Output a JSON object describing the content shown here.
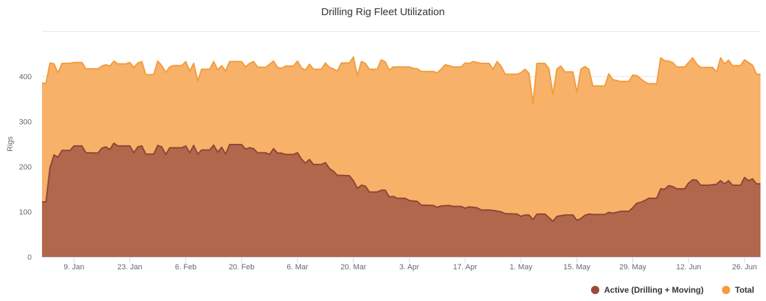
{
  "chart_data": {
    "type": "area",
    "title": "Drilling Rig Fleet Utilization",
    "ylabel": "Rigs",
    "xlabel": "",
    "ylim": [
      0,
      500
    ],
    "yticks": [
      0,
      100,
      200,
      300,
      400
    ],
    "grid": true,
    "legend_placement": "bottom-right",
    "xlim": [
      "01-01",
      "06-30"
    ],
    "xticks": [
      {
        "date": "01-09",
        "label": "9. Jan"
      },
      {
        "date": "01-23",
        "label": "23. Jan"
      },
      {
        "date": "02-06",
        "label": "6. Feb"
      },
      {
        "date": "02-20",
        "label": "20. Feb"
      },
      {
        "date": "03-06",
        "label": "6. Mar"
      },
      {
        "date": "03-20",
        "label": "20. Mar"
      },
      {
        "date": "04-03",
        "label": "3. Apr"
      },
      {
        "date": "04-17",
        "label": "17. Apr"
      },
      {
        "date": "05-01",
        "label": "1. May"
      },
      {
        "date": "05-15",
        "label": "15. May"
      },
      {
        "date": "05-29",
        "label": "29. May"
      },
      {
        "date": "06-12",
        "label": "12. Jun"
      },
      {
        "date": "06-26",
        "label": "26. Jun"
      }
    ],
    "series": [
      {
        "name": "Total",
        "fill": "#f7b169",
        "line": "#f39c3c",
        "legend_color": "#f39c3c",
        "points": [
          [
            "01-01",
            385
          ],
          [
            "01-02",
            385
          ],
          [
            "01-03",
            430
          ],
          [
            "01-04",
            428
          ],
          [
            "01-05",
            408
          ],
          [
            "01-06",
            429
          ],
          [
            "01-08",
            429
          ],
          [
            "01-09",
            431
          ],
          [
            "01-11",
            431
          ],
          [
            "01-12",
            417
          ],
          [
            "01-15",
            417
          ],
          [
            "01-16",
            423
          ],
          [
            "01-17",
            426
          ],
          [
            "01-18",
            423
          ],
          [
            "01-19",
            434
          ],
          [
            "01-20",
            428
          ],
          [
            "01-22",
            428
          ],
          [
            "01-23",
            431
          ],
          [
            "01-24",
            420
          ],
          [
            "01-25",
            430
          ],
          [
            "01-26",
            433
          ],
          [
            "01-27",
            404
          ],
          [
            "01-29",
            404
          ],
          [
            "01-30",
            434
          ],
          [
            "01-31",
            424
          ],
          [
            "02-01",
            409
          ],
          [
            "02-02",
            421
          ],
          [
            "02-03",
            424
          ],
          [
            "02-05",
            424
          ],
          [
            "02-06",
            433
          ],
          [
            "02-07",
            412
          ],
          [
            "02-08",
            429
          ],
          [
            "02-09",
            390
          ],
          [
            "02-10",
            416
          ],
          [
            "02-12",
            416
          ],
          [
            "02-13",
            433
          ],
          [
            "02-14",
            415
          ],
          [
            "02-15",
            424
          ],
          [
            "02-16",
            412
          ],
          [
            "02-17",
            433
          ],
          [
            "02-20",
            433
          ],
          [
            "02-21",
            421
          ],
          [
            "02-22",
            429
          ],
          [
            "02-23",
            433
          ],
          [
            "02-24",
            421
          ],
          [
            "02-26",
            420
          ],
          [
            "02-28",
            434
          ],
          [
            "03-01",
            420
          ],
          [
            "03-02",
            418
          ],
          [
            "03-03",
            423
          ],
          [
            "03-05",
            423
          ],
          [
            "03-06",
            434
          ],
          [
            "03-07",
            419
          ],
          [
            "03-08",
            414
          ],
          [
            "03-09",
            427
          ],
          [
            "03-10",
            416
          ],
          [
            "03-12",
            416
          ],
          [
            "03-13",
            430
          ],
          [
            "03-14",
            420
          ],
          [
            "03-15",
            417
          ],
          [
            "03-16",
            412
          ],
          [
            "03-17",
            430
          ],
          [
            "03-19",
            430
          ],
          [
            "03-20",
            443
          ],
          [
            "03-21",
            402
          ],
          [
            "03-22",
            433
          ],
          [
            "03-23",
            429
          ],
          [
            "03-24",
            416
          ],
          [
            "03-26",
            416
          ],
          [
            "03-27",
            437
          ],
          [
            "03-28",
            432
          ],
          [
            "03-29",
            414
          ],
          [
            "03-30",
            421
          ],
          [
            "04-03",
            421
          ],
          [
            "04-04",
            418
          ],
          [
            "04-05",
            417
          ],
          [
            "04-06",
            411
          ],
          [
            "04-09",
            411
          ],
          [
            "04-10",
            408
          ],
          [
            "04-11",
            416
          ],
          [
            "04-12",
            426
          ],
          [
            "04-13",
            424
          ],
          [
            "04-14",
            421
          ],
          [
            "04-16",
            421
          ],
          [
            "04-17",
            430
          ],
          [
            "04-18",
            429
          ],
          [
            "04-19",
            433
          ],
          [
            "04-21",
            429
          ],
          [
            "04-23",
            429
          ],
          [
            "04-24",
            416
          ],
          [
            "04-25",
            433
          ],
          [
            "04-26",
            423
          ],
          [
            "04-27",
            405
          ],
          [
            "04-30",
            405
          ],
          [
            "05-01",
            408
          ],
          [
            "05-02",
            416
          ],
          [
            "05-03",
            407
          ],
          [
            "05-04",
            340
          ],
          [
            "05-05",
            429
          ],
          [
            "05-07",
            429
          ],
          [
            "05-08",
            417
          ],
          [
            "05-09",
            360
          ],
          [
            "05-10",
            417
          ],
          [
            "05-11",
            423
          ],
          [
            "05-12",
            410
          ],
          [
            "05-14",
            410
          ],
          [
            "05-15",
            365
          ],
          [
            "05-16",
            416
          ],
          [
            "05-17",
            422
          ],
          [
            "05-18",
            416
          ],
          [
            "05-19",
            379
          ],
          [
            "05-22",
            379
          ],
          [
            "05-23",
            406
          ],
          [
            "05-24",
            393
          ],
          [
            "05-26",
            389
          ],
          [
            "05-28",
            389
          ],
          [
            "05-29",
            403
          ],
          [
            "05-30",
            402
          ],
          [
            "05-31",
            395
          ],
          [
            "06-01",
            388
          ],
          [
            "06-02",
            384
          ],
          [
            "06-04",
            384
          ],
          [
            "06-05",
            441
          ],
          [
            "06-06",
            435
          ],
          [
            "06-07",
            434
          ],
          [
            "06-08",
            431
          ],
          [
            "06-09",
            421
          ],
          [
            "06-11",
            421
          ],
          [
            "06-12",
            431
          ],
          [
            "06-13",
            441
          ],
          [
            "06-14",
            428
          ],
          [
            "06-15",
            420
          ],
          [
            "06-18",
            420
          ],
          [
            "06-19",
            410
          ],
          [
            "06-20",
            441
          ],
          [
            "06-21",
            428
          ],
          [
            "06-22",
            436
          ],
          [
            "06-23",
            424
          ],
          [
            "06-25",
            424
          ],
          [
            "06-26",
            437
          ],
          [
            "06-27",
            431
          ],
          [
            "06-28",
            425
          ],
          [
            "06-29",
            405
          ],
          [
            "06-30",
            405
          ]
        ]
      },
      {
        "name": "Active (Drilling + Moving)",
        "fill": "#b0674c",
        "line": "#8f4535",
        "legend_color": "#9b4a3a",
        "points": [
          [
            "01-01",
            122
          ],
          [
            "01-02",
            122
          ],
          [
            "01-03",
            198
          ],
          [
            "01-04",
            226
          ],
          [
            "01-05",
            221
          ],
          [
            "01-06",
            236
          ],
          [
            "01-08",
            236
          ],
          [
            "01-09",
            246
          ],
          [
            "01-11",
            246
          ],
          [
            "01-12",
            231
          ],
          [
            "01-15",
            230
          ],
          [
            "01-16",
            241
          ],
          [
            "01-17",
            244
          ],
          [
            "01-18",
            238
          ],
          [
            "01-19",
            252
          ],
          [
            "01-20",
            246
          ],
          [
            "01-23",
            246
          ],
          [
            "01-24",
            231
          ],
          [
            "01-25",
            244
          ],
          [
            "01-26",
            246
          ],
          [
            "01-27",
            228
          ],
          [
            "01-29",
            228
          ],
          [
            "01-30",
            247
          ],
          [
            "01-31",
            244
          ],
          [
            "02-01",
            227
          ],
          [
            "02-02",
            242
          ],
          [
            "02-05",
            242
          ],
          [
            "02-06",
            246
          ],
          [
            "02-07",
            231
          ],
          [
            "02-08",
            247
          ],
          [
            "02-09",
            228
          ],
          [
            "02-10",
            237
          ],
          [
            "02-12",
            237
          ],
          [
            "02-13",
            248
          ],
          [
            "02-14",
            232
          ],
          [
            "02-15",
            243
          ],
          [
            "02-16",
            228
          ],
          [
            "02-17",
            249
          ],
          [
            "02-20",
            249
          ],
          [
            "02-21",
            239
          ],
          [
            "02-22",
            242
          ],
          [
            "02-23",
            240
          ],
          [
            "02-24",
            231
          ],
          [
            "02-26",
            231
          ],
          [
            "02-27",
            227
          ],
          [
            "02-28",
            240
          ],
          [
            "03-01",
            230
          ],
          [
            "03-02",
            230
          ],
          [
            "03-03",
            227
          ],
          [
            "03-05",
            227
          ],
          [
            "03-06",
            231
          ],
          [
            "03-07",
            217
          ],
          [
            "03-08",
            208
          ],
          [
            "03-09",
            216
          ],
          [
            "03-10",
            205
          ],
          [
            "03-12",
            205
          ],
          [
            "03-13",
            209
          ],
          [
            "03-14",
            196
          ],
          [
            "03-15",
            190
          ],
          [
            "03-16",
            181
          ],
          [
            "03-19",
            180
          ],
          [
            "03-20",
            169
          ],
          [
            "03-21",
            152
          ],
          [
            "03-22",
            159
          ],
          [
            "03-23",
            157
          ],
          [
            "03-24",
            144
          ],
          [
            "03-26",
            144
          ],
          [
            "03-27",
            148
          ],
          [
            "03-28",
            148
          ],
          [
            "03-29",
            133
          ],
          [
            "03-30",
            134
          ],
          [
            "03-31",
            130
          ],
          [
            "04-02",
            130
          ],
          [
            "04-03",
            125
          ],
          [
            "04-05",
            123
          ],
          [
            "04-06",
            115
          ],
          [
            "04-09",
            114
          ],
          [
            "04-10",
            110
          ],
          [
            "04-11",
            113
          ],
          [
            "04-13",
            114
          ],
          [
            "04-14",
            112
          ],
          [
            "04-16",
            112
          ],
          [
            "04-17",
            108
          ],
          [
            "04-18",
            111
          ],
          [
            "04-20",
            109
          ],
          [
            "04-21",
            104
          ],
          [
            "04-23",
            104
          ],
          [
            "04-24",
            103
          ],
          [
            "04-26",
            100
          ],
          [
            "04-27",
            96
          ],
          [
            "04-30",
            95
          ],
          [
            "05-01",
            90
          ],
          [
            "05-02",
            93
          ],
          [
            "05-03",
            93
          ],
          [
            "05-04",
            83
          ],
          [
            "05-05",
            95
          ],
          [
            "05-07",
            95
          ],
          [
            "05-08",
            87
          ],
          [
            "05-09",
            79
          ],
          [
            "05-10",
            90
          ],
          [
            "05-12",
            93
          ],
          [
            "05-14",
            93
          ],
          [
            "05-15",
            81
          ],
          [
            "05-16",
            85
          ],
          [
            "05-17",
            92
          ],
          [
            "05-18",
            95
          ],
          [
            "05-19",
            94
          ],
          [
            "05-22",
            94
          ],
          [
            "05-23",
            99
          ],
          [
            "05-24",
            97
          ],
          [
            "05-26",
            101
          ],
          [
            "05-28",
            101
          ],
          [
            "05-29",
            109
          ],
          [
            "05-30",
            119
          ],
          [
            "05-31",
            121
          ],
          [
            "06-01",
            125
          ],
          [
            "06-02",
            130
          ],
          [
            "06-04",
            130
          ],
          [
            "06-05",
            151
          ],
          [
            "06-06",
            150
          ],
          [
            "06-07",
            158
          ],
          [
            "06-08",
            156
          ],
          [
            "06-09",
            151
          ],
          [
            "06-11",
            151
          ],
          [
            "06-12",
            164
          ],
          [
            "06-13",
            171
          ],
          [
            "06-14",
            170
          ],
          [
            "06-15",
            159
          ],
          [
            "06-17",
            159
          ],
          [
            "06-19",
            161
          ],
          [
            "06-20",
            169
          ],
          [
            "06-21",
            162
          ],
          [
            "06-22",
            169
          ],
          [
            "06-23",
            159
          ],
          [
            "06-25",
            159
          ],
          [
            "06-26",
            176
          ],
          [
            "06-27",
            169
          ],
          [
            "06-28",
            173
          ],
          [
            "06-29",
            162
          ],
          [
            "06-30",
            162
          ]
        ]
      }
    ],
    "legend": [
      {
        "label": "Active (Drilling + Moving)",
        "color": "#9b4a3a"
      },
      {
        "label": "Total",
        "color": "#f39c3c"
      }
    ]
  }
}
